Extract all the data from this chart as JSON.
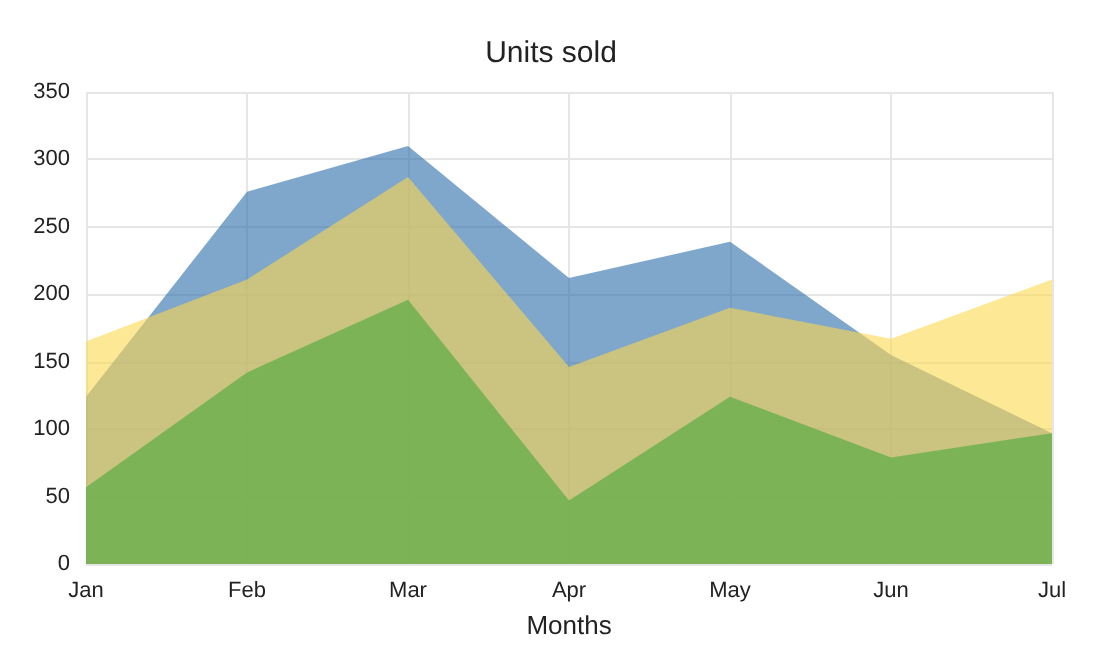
{
  "chart_data": {
    "type": "area",
    "title": "Units sold",
    "xlabel": "Months",
    "categories": [
      "Jan",
      "Feb",
      "Mar",
      "Apr",
      "May",
      "Jun",
      "Jul"
    ],
    "series": [
      {
        "color": "#2a6aa8",
        "values": [
          124,
          276,
          310,
          212,
          239,
          155,
          97
        ]
      },
      {
        "color": "#fcd94f",
        "values": [
          165,
          211,
          287,
          146,
          190,
          167,
          211
        ]
      },
      {
        "color": "#4aa83c",
        "values": [
          57,
          142,
          196,
          47,
          124,
          79,
          97
        ]
      }
    ],
    "ylim": [
      0,
      350
    ],
    "yticks": [
      0,
      50,
      100,
      150,
      200,
      250,
      300,
      350
    ],
    "grid": true,
    "marker": "none"
  }
}
